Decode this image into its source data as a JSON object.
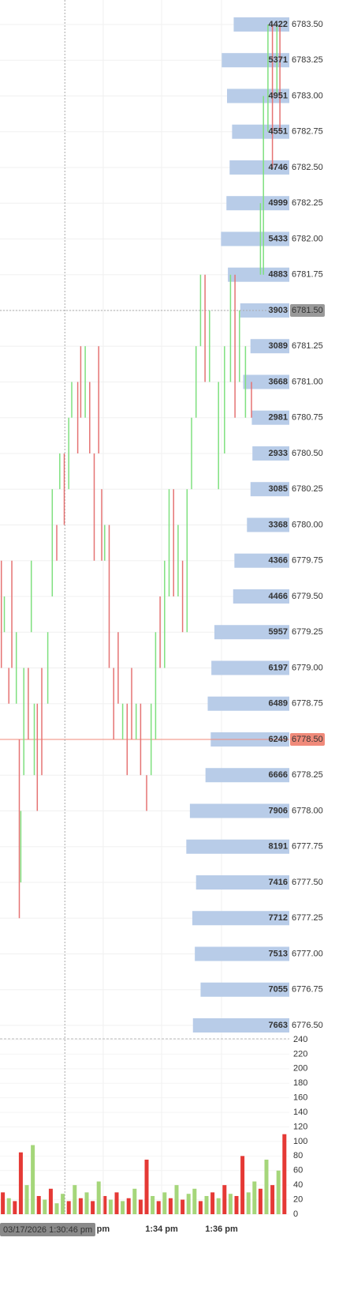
{
  "chart_data": [
    {
      "type": "price",
      "ylim": [
        6776.406,
        6783.671
      ],
      "xlim": [
        -1.395,
        8.263
      ],
      "yticks": [
        {
          "value": 6783.5,
          "label": "6783.50"
        },
        {
          "value": 6783.25,
          "label": "6783.25"
        },
        {
          "value": 6783.0,
          "label": "6783.00"
        },
        {
          "value": 6782.75,
          "label": "6782.75"
        },
        {
          "value": 6782.5,
          "label": "6782.50"
        },
        {
          "value": 6782.25,
          "label": "6782.25"
        },
        {
          "value": 6782.0,
          "label": "6782.00"
        },
        {
          "value": 6781.75,
          "label": "6781.75"
        },
        {
          "value": 6781.5,
          "label": "6781.50"
        },
        {
          "value": 6781.25,
          "label": "6781.25"
        },
        {
          "value": 6781.0,
          "label": "6781.00"
        },
        {
          "value": 6780.75,
          "label": "6780.75"
        },
        {
          "value": 6780.5,
          "label": "6780.50"
        },
        {
          "value": 6780.25,
          "label": "6780.25"
        },
        {
          "value": 6780.0,
          "label": "6780.00"
        },
        {
          "value": 6779.75,
          "label": "6779.75"
        },
        {
          "value": 6779.5,
          "label": "6779.50"
        },
        {
          "value": 6779.25,
          "label": "6779.25"
        },
        {
          "value": 6779.0,
          "label": "6779.00"
        },
        {
          "value": 6778.75,
          "label": "6778.75"
        },
        {
          "value": 6778.5,
          "label": "6778.50"
        },
        {
          "value": 6778.25,
          "label": "6778.25"
        },
        {
          "value": 6778.0,
          "label": "6778.00"
        },
        {
          "value": 6777.75,
          "label": "6777.75"
        },
        {
          "value": 6777.5,
          "label": "6777.50"
        },
        {
          "value": 6777.25,
          "label": "6777.25"
        },
        {
          "value": 6777.0,
          "label": "6777.00"
        },
        {
          "value": 6776.75,
          "label": "6776.75"
        },
        {
          "value": 6776.5,
          "label": "6776.50"
        }
      ],
      "profile_values": [
        4422,
        5371,
        4951,
        4551,
        4746,
        4999,
        5433,
        4883,
        3903,
        3089,
        3668,
        2981,
        2933,
        3085,
        3368,
        4366,
        4466,
        5957,
        6197,
        6489,
        6249,
        6666,
        7906,
        8191,
        7416,
        7712,
        7513,
        7055,
        7663
      ],
      "profile_xlim": [
        0,
        8400
      ],
      "profile_color": "#b8cce8",
      "crosshair_price": 6781.5,
      "last_price": 6778.5,
      "last_color": "#f08a7a",
      "up_color": "#7ee07e",
      "down_color": "#e57373",
      "grid": true,
      "candles": {
        "x": [
          -1.35,
          -1.25,
          -1.1,
          -1.0,
          -0.85,
          -0.75,
          -0.7,
          -0.6,
          -0.45,
          -0.35,
          -0.25,
          -0.15,
          0.0,
          0.2,
          0.35,
          0.5,
          0.6,
          0.75,
          0.9,
          1.0,
          1.2,
          1.3,
          1.45,
          1.6,
          1.75,
          1.9,
          2.0,
          2.1,
          2.25,
          2.4,
          2.55,
          2.7,
          2.85,
          3.0,
          3.15,
          3.3,
          3.5,
          3.65,
          3.8,
          3.95,
          4.1,
          4.25,
          4.4,
          4.55,
          4.7,
          4.85,
          5.0,
          5.15,
          5.3,
          5.45,
          5.6,
          5.9,
          6.1,
          6.3,
          6.45,
          6.6,
          6.8,
          7.0,
          7.3,
          7.4,
          7.55,
          7.7,
          7.85,
          7.95
        ],
        "open": [
          6779.75,
          6779.25,
          6779.0,
          6779.75,
          6778.75,
          6778.5,
          6777.5,
          6778.25,
          6779.0,
          6779.25,
          6778.25,
          6778.75,
          6779.0,
          6778.75,
          6779.5,
          6780.0,
          6780.25,
          6780.5,
          6780.25,
          6780.75,
          6781.0,
          6781.25,
          6780.75,
          6781.0,
          6780.5,
          6781.25,
          6780.25,
          6779.75,
          6780.0,
          6779.0,
          6779.25,
          6778.5,
          6778.75,
          6779.0,
          6778.5,
          6778.75,
          6778.25,
          6778.25,
          6778.5,
          6779.5,
          6779.0,
          6779.5,
          6780.25,
          6779.5,
          6779.75,
          6779.25,
          6780.25,
          6780.75,
          6781.25,
          6781.75,
          6781.0,
          6780.25,
          6780.5,
          6781.0,
          6781.75,
          6781.0,
          6780.75,
          6781.0,
          6781.75,
          6781.75,
          6782.75,
          6783.5,
          6783.0,
          6783.5
        ],
        "close": [
          6779.0,
          6779.5,
          6778.75,
          6779.0,
          6779.25,
          6777.25,
          6778.0,
          6779.0,
          6778.5,
          6779.75,
          6778.75,
          6778.0,
          6778.25,
          6779.25,
          6780.25,
          6779.75,
          6780.5,
          6780.0,
          6780.75,
          6781.0,
          6780.5,
          6780.75,
          6781.25,
          6780.5,
          6779.75,
          6780.5,
          6779.75,
          6780.0,
          6779.0,
          6778.5,
          6778.75,
          6778.75,
          6778.25,
          6778.5,
          6778.75,
          6778.25,
          6778.0,
          6778.75,
          6779.25,
          6779.0,
          6779.75,
          6780.25,
          6779.5,
          6780.0,
          6779.25,
          6780.25,
          6780.75,
          6781.25,
          6781.75,
          6781.0,
          6781.5,
          6781.0,
          6781.25,
          6781.75,
          6780.75,
          6781.5,
          6781.25,
          6780.75,
          6782.25,
          6783.0,
          6783.5,
          6782.5,
          6783.5,
          6782.75
        ]
      },
      "xticks": [
        {
          "value": 2.05,
          "label": "pm"
        },
        {
          "value": 4,
          "label": "1:34 pm"
        },
        {
          "value": 6,
          "label": "1:36 pm"
        }
      ],
      "crosshair_time": {
        "value": 0.77,
        "label": "03/17/2026 1:30:46 pm"
      }
    },
    {
      "type": "volume",
      "ylim": [
        0,
        240
      ],
      "yticks": [
        0,
        20,
        40,
        60,
        80,
        100,
        120,
        140,
        160,
        180,
        200,
        220,
        240
      ],
      "x": [
        -1.3,
        -1.1,
        -0.9,
        -0.7,
        -0.5,
        -0.3,
        -0.1,
        0.1,
        0.3,
        0.5,
        0.7,
        0.9,
        1.1,
        1.3,
        1.5,
        1.7,
        1.9,
        2.1,
        2.3,
        2.5,
        2.7,
        2.9,
        3.1,
        3.3,
        3.5,
        3.7,
        3.9,
        4.1,
        4.3,
        4.5,
        4.7,
        4.9,
        5.1,
        5.3,
        5.5,
        5.7,
        5.9,
        6.1,
        6.3,
        6.5,
        6.7,
        6.9,
        7.1,
        7.3,
        7.5,
        7.7,
        7.9,
        8.1
      ],
      "values": [
        30,
        22,
        18,
        85,
        40,
        95,
        25,
        20,
        35,
        15,
        28,
        18,
        40,
        22,
        30,
        18,
        45,
        25,
        20,
        30,
        18,
        22,
        35,
        20,
        75,
        25,
        18,
        30,
        22,
        40,
        20,
        28,
        35,
        18,
        25,
        30,
        22,
        40,
        28,
        25,
        80,
        30,
        45,
        35,
        75,
        40,
        60,
        110
      ],
      "colors": [
        "#e53935",
        "#a5d67a",
        "#e53935",
        "#e53935",
        "#a5d67a",
        "#a5d67a",
        "#e53935",
        "#a5d67a",
        "#e53935",
        "#a5d67a",
        "#a5d67a",
        "#e53935",
        "#a5d67a",
        "#e53935",
        "#a5d67a",
        "#e53935",
        "#a5d67a",
        "#e53935",
        "#a5d67a",
        "#e53935",
        "#a5d67a",
        "#e53935",
        "#a5d67a",
        "#e53935",
        "#e53935",
        "#a5d67a",
        "#e53935",
        "#a5d67a",
        "#e53935",
        "#a5d67a",
        "#e53935",
        "#a5d67a",
        "#a5d67a",
        "#e53935",
        "#a5d67a",
        "#e53935",
        "#a5d67a",
        "#e53935",
        "#a5d67a",
        "#e53935",
        "#e53935",
        "#a5d67a",
        "#a5d67a",
        "#e53935",
        "#a5d67a",
        "#e53935",
        "#a5d67a",
        "#e53935"
      ]
    }
  ]
}
